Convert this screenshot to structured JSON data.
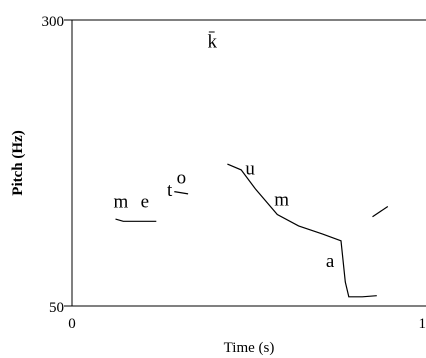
{
  "chart_data": {
    "type": "line",
    "title": "",
    "xlabel": "Time (s)",
    "ylabel": "Pitch (Hz)",
    "ylim": [
      50,
      300
    ],
    "xlim": [
      0,
      1
    ],
    "x_tick_labels": [
      "0",
      "1"
    ],
    "y_tick_labels": [
      "300",
      "50"
    ],
    "grid": false,
    "series": [
      {
        "values": [
          {
            "x": 0.123,
            "y": 126
          },
          {
            "x": 0.145,
            "y": 124
          },
          {
            "x": 0.175,
            "y": 124
          },
          {
            "x": 0.238,
            "y": 124
          }
        ]
      },
      {
        "values": [
          {
            "x": 0.289,
            "y": 150
          },
          {
            "x": 0.328,
            "y": 148
          }
        ]
      },
      {
        "values": [
          {
            "x": 0.439,
            "y": 174
          },
          {
            "x": 0.478,
            "y": 169
          },
          {
            "x": 0.519,
            "y": 152
          },
          {
            "x": 0.58,
            "y": 130
          },
          {
            "x": 0.64,
            "y": 120
          },
          {
            "x": 0.707,
            "y": 113
          },
          {
            "x": 0.76,
            "y": 107
          },
          {
            "x": 0.772,
            "y": 71
          },
          {
            "x": 0.782,
            "y": 58
          },
          {
            "x": 0.82,
            "y": 58
          },
          {
            "x": 0.861,
            "y": 59
          }
        ]
      },
      {
        "values": [
          {
            "x": 0.849,
            "y": 128
          },
          {
            "x": 0.892,
            "y": 137
          }
        ]
      }
    ],
    "annotations": [
      {
        "text": "m",
        "x": 0.138,
        "y": 136
      },
      {
        "text": "e",
        "x": 0.206,
        "y": 136
      },
      {
        "text": "t",
        "x": 0.276,
        "y": 146
      },
      {
        "text": "o",
        "x": 0.309,
        "y": 157
      },
      {
        "text": "k̄",
        "x": 0.396,
        "y": 276
      },
      {
        "text": "u",
        "x": 0.503,
        "y": 165
      },
      {
        "text": "m",
        "x": 0.592,
        "y": 138
      },
      {
        "text": "a",
        "x": 0.729,
        "y": 84
      }
    ]
  }
}
